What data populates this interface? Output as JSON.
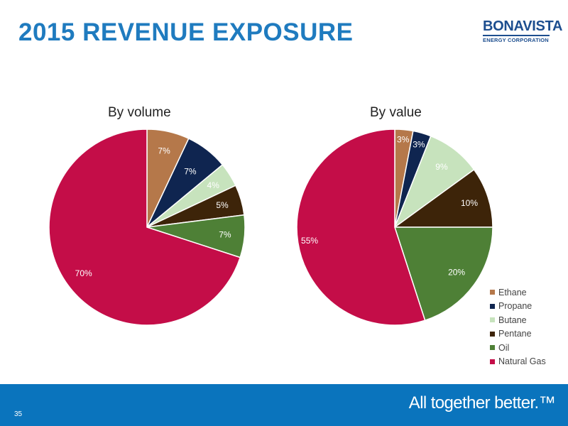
{
  "slide": {
    "title": "2015 REVENUE EXPOSURE",
    "page_number": "35",
    "tagline": "All together better.™"
  },
  "logo": {
    "name": "BONAVISTA",
    "subtitle": "ENERGY CORPORATION",
    "color": "#1d4e8f"
  },
  "colors": {
    "title": "#1f7bbf",
    "footer": "#0a74bd"
  },
  "chart_data": [
    {
      "type": "pie",
      "title": "By volume",
      "categories": [
        "Ethane",
        "Propane",
        "Butane",
        "Pentane",
        "Oil",
        "Natural Gas"
      ],
      "values": [
        7,
        7,
        4,
        5,
        7,
        70
      ],
      "labels": [
        "7%",
        "7%",
        "4%",
        "5%",
        "7%",
        "70%"
      ],
      "colors": [
        "#b5784a",
        "#0f2550",
        "#c7e3bd",
        "#3d2409",
        "#4e8036",
        "#c40d48"
      ],
      "label_colors": [
        "#ffffff",
        "#ffffff",
        "#ffffff",
        "#ffffff",
        "#ffffff",
        "#ffffff"
      ],
      "start_angle_deg": 0,
      "direction": "clockwise"
    },
    {
      "type": "pie",
      "title": "By value",
      "categories": [
        "Ethane",
        "Propane",
        "Butane",
        "Pentane",
        "Oil",
        "Natural Gas"
      ],
      "values": [
        3,
        3,
        9,
        10,
        20,
        55
      ],
      "labels": [
        "3%",
        "3%",
        "9%",
        "10%",
        "20%",
        "55%"
      ],
      "colors": [
        "#b5784a",
        "#0f2550",
        "#c7e3bd",
        "#3d2409",
        "#4e8036",
        "#c40d48"
      ],
      "label_colors": [
        "#ffffff",
        "#ffffff",
        "#ffffff",
        "#ffffff",
        "#ffffff",
        "#ffffff"
      ],
      "start_angle_deg": 0,
      "direction": "clockwise"
    }
  ],
  "legend": {
    "placement": "bottom-right",
    "items": [
      {
        "label": "Ethane",
        "color": "#b5784a"
      },
      {
        "label": "Propane",
        "color": "#0f2550"
      },
      {
        "label": "Butane",
        "color": "#c7e3bd"
      },
      {
        "label": "Pentane",
        "color": "#3d2409"
      },
      {
        "label": "Oil",
        "color": "#4e8036"
      },
      {
        "label": "Natural Gas",
        "color": "#c40d48"
      }
    ]
  }
}
